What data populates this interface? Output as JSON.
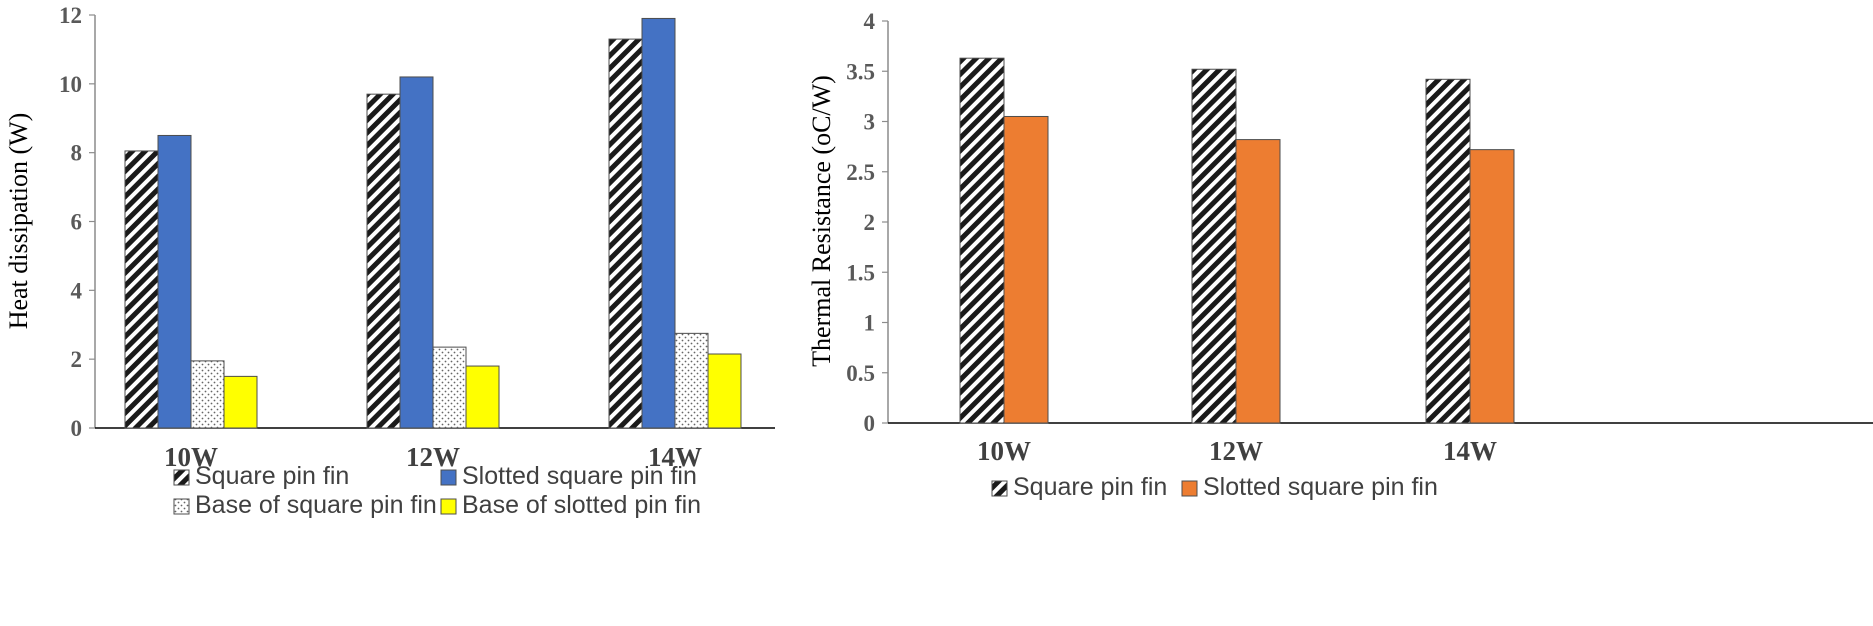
{
  "chart_data": [
    {
      "type": "bar",
      "categories": [
        "10W",
        "12W",
        "14W"
      ],
      "ylabel": "Heat dissipation (W)",
      "ylim": [
        0,
        12
      ],
      "yticks": [
        0,
        2,
        4,
        6,
        8,
        10,
        12
      ],
      "grid": false,
      "legend_position": "bottom",
      "series": [
        {
          "name": "Square pin fin",
          "values": [
            8.05,
            9.7,
            11.3
          ],
          "fill": "hatch",
          "color": "#000000"
        },
        {
          "name": "Slotted square pin fin",
          "values": [
            8.5,
            10.2,
            11.9
          ],
          "fill": "solid",
          "color": "#4472C4"
        },
        {
          "name": "Base of square pin fin",
          "values": [
            1.95,
            2.35,
            2.75
          ],
          "fill": "dots",
          "color": "#7f7f7f"
        },
        {
          "name": "Base of slotted pin fin",
          "values": [
            1.5,
            1.8,
            2.15
          ],
          "fill": "solid",
          "color": "#FFFF00"
        }
      ]
    },
    {
      "type": "bar",
      "categories": [
        "10W",
        "12W",
        "14W"
      ],
      "ylabel": "Thermal Resistance (oC/W)",
      "ylim": [
        0,
        4
      ],
      "yticks": [
        "0",
        "0.5",
        "1",
        "1.5",
        "2",
        "2.5",
        "3",
        "3.5",
        "4"
      ],
      "grid": false,
      "legend_position": "bottom",
      "series": [
        {
          "name": "Square pin fin",
          "values": [
            3.63,
            3.52,
            3.42
          ],
          "fill": "hatch",
          "color": "#000000"
        },
        {
          "name": "Slotted square pin fin",
          "values": [
            3.05,
            2.82,
            2.72
          ],
          "fill": "solid",
          "color": "#ED7D31"
        }
      ]
    }
  ]
}
